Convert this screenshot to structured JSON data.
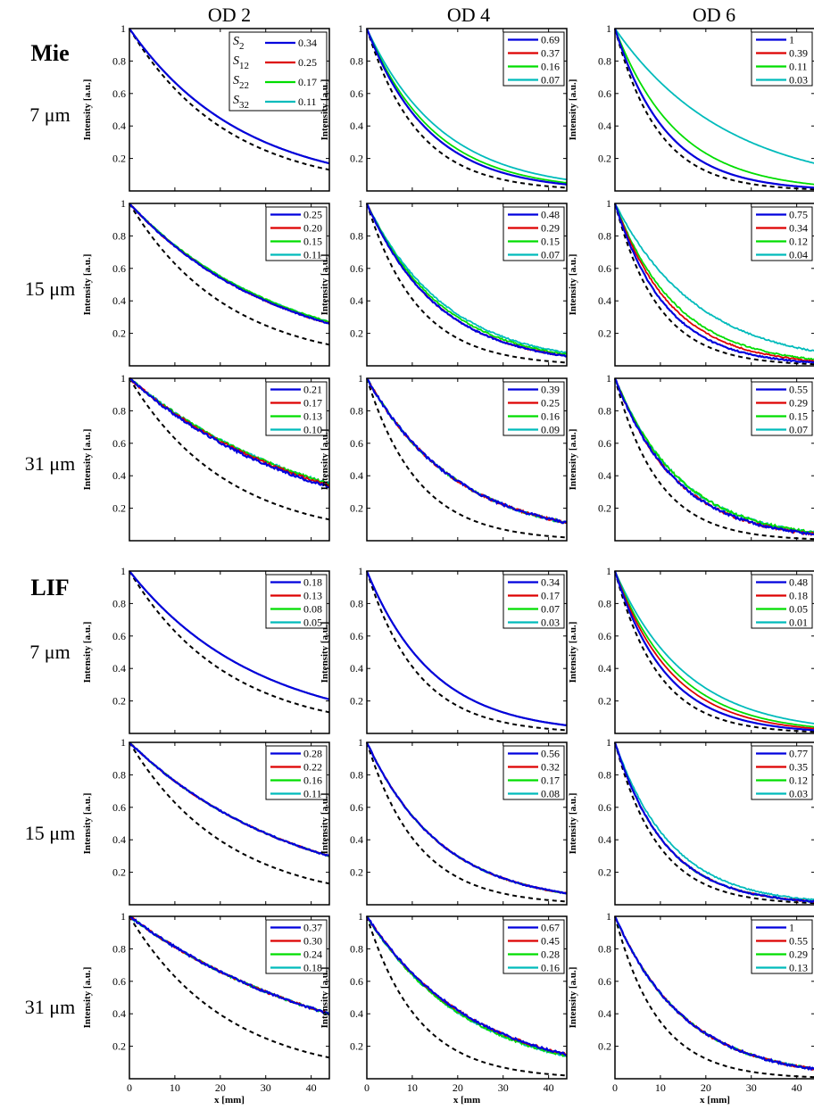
{
  "col_titles": [
    "OD 2",
    "OD 4",
    "OD 6"
  ],
  "group_labels": [
    "Mie",
    "LIF"
  ],
  "row_labels": [
    "7 μm",
    "15 μm",
    "31 μm",
    "7 μm",
    "15 μm",
    "31 μm"
  ],
  "ylabel": "Intensity [a.u.]",
  "xlabel": "x [mm]",
  "xlabel_variant": "x [mm",
  "legend_s_labels": [
    "S2",
    "S12",
    "S22",
    "S32"
  ],
  "colors": {
    "S2": "#0000dd",
    "S12": "#dd0000",
    "S22": "#00dd00",
    "S32": "#00bbbb",
    "reference": "#000000"
  },
  "chart_data": {
    "type": "line",
    "layout": "6 rows x 3 columns grid",
    "series_names": [
      "S2",
      "S12",
      "S22",
      "S32"
    ],
    "reference_line": "dashed black",
    "xlim": [
      0,
      44
    ],
    "ylim": [
      0,
      1
    ],
    "x_ticks": [
      "0",
      "10",
      "20",
      "30",
      "40"
    ],
    "y_ticks": [
      "0.2",
      "0.4",
      "0.6",
      "0.8",
      "1"
    ],
    "panels": [
      {
        "group": "Mie",
        "size": "7 μm",
        "od": "OD 2",
        "legend": [
          "0.34",
          "0.25",
          "0.17",
          "0.11"
        ],
        "end_values": [
          0.17,
          0.17,
          0.17,
          0.17
        ],
        "reference_end": 0.13
      },
      {
        "group": "Mie",
        "size": "7 μm",
        "od": "OD 4",
        "legend": [
          "0.69",
          "0.37",
          "0.16",
          "0.07"
        ],
        "end_values": [
          0.04,
          0.04,
          0.05,
          0.07
        ],
        "reference_end": 0.02
      },
      {
        "group": "Mie",
        "size": "7 μm",
        "od": "OD 6",
        "legend": [
          "1",
          "0.39",
          "0.11",
          "0.03"
        ],
        "end_values": [
          0.02,
          0.02,
          0.04,
          0.17
        ],
        "reference_end": 0.01
      },
      {
        "group": "Mie",
        "size": "15 μm",
        "od": "OD 2",
        "legend": [
          "0.25",
          "0.20",
          "0.15",
          "0.11"
        ],
        "end_values": [
          0.26,
          0.26,
          0.27,
          0.27
        ],
        "reference_end": 0.13
      },
      {
        "group": "Mie",
        "size": "15 μm",
        "od": "OD 4",
        "legend": [
          "0.48",
          "0.29",
          "0.15",
          "0.07"
        ],
        "end_values": [
          0.06,
          0.06,
          0.07,
          0.08
        ],
        "reference_end": 0.02
      },
      {
        "group": "Mie",
        "size": "15 μm",
        "od": "OD 6",
        "legend": [
          "0.75",
          "0.34",
          "0.12",
          "0.04"
        ],
        "end_values": [
          0.02,
          0.03,
          0.04,
          0.09
        ],
        "reference_end": 0.01
      },
      {
        "group": "Mie",
        "size": "31 μm",
        "od": "OD 2",
        "legend": [
          "0.21",
          "0.17",
          "0.13",
          "0.10"
        ],
        "end_values": [
          0.33,
          0.34,
          0.35,
          0.35
        ],
        "reference_end": 0.13
      },
      {
        "group": "Mie",
        "size": "31 μm",
        "od": "OD 4",
        "legend": [
          "0.39",
          "0.25",
          "0.16",
          "0.09"
        ],
        "end_values": [
          0.11,
          0.11,
          0.11,
          0.11
        ],
        "reference_end": 0.02
      },
      {
        "group": "Mie",
        "size": "31 μm",
        "od": "OD 6",
        "legend": [
          "0.55",
          "0.29",
          "0.15",
          "0.07"
        ],
        "end_values": [
          0.04,
          0.04,
          0.05,
          0.05
        ],
        "reference_end": 0.01
      },
      {
        "group": "LIF",
        "size": "7 μm",
        "od": "OD 2",
        "legend": [
          "0.18",
          "0.13",
          "0.08",
          "0.05"
        ],
        "end_values": [
          0.21,
          0.21,
          0.21,
          0.21
        ],
        "reference_end": 0.13
      },
      {
        "group": "LIF",
        "size": "7 μm",
        "od": "OD 4",
        "legend": [
          "0.34",
          "0.17",
          "0.07",
          "0.03"
        ],
        "end_values": [
          0.05,
          0.05,
          0.05,
          0.05
        ],
        "reference_end": 0.02
      },
      {
        "group": "LIF",
        "size": "7 μm",
        "od": "OD 6",
        "legend": [
          "0.48",
          "0.18",
          "0.05",
          "0.01"
        ],
        "end_values": [
          0.02,
          0.03,
          0.04,
          0.06
        ],
        "reference_end": 0.01
      },
      {
        "group": "LIF",
        "size": "15 μm",
        "od": "OD 2",
        "legend": [
          "0.28",
          "0.22",
          "0.16",
          "0.11"
        ],
        "end_values": [
          0.3,
          0.3,
          0.3,
          0.3
        ],
        "reference_end": 0.13
      },
      {
        "group": "LIF",
        "size": "15 μm",
        "od": "OD 4",
        "legend": [
          "0.56",
          "0.32",
          "0.17",
          "0.08"
        ],
        "end_values": [
          0.07,
          0.07,
          0.07,
          0.07
        ],
        "reference_end": 0.02
      },
      {
        "group": "LIF",
        "size": "15 μm",
        "od": "OD 6",
        "legend": [
          "0.77",
          "0.35",
          "0.12",
          "0.03"
        ],
        "end_values": [
          0.02,
          0.02,
          0.02,
          0.03
        ],
        "reference_end": 0.01
      },
      {
        "group": "LIF",
        "size": "31 μm",
        "od": "OD 2",
        "legend": [
          "0.37",
          "0.30",
          "0.24",
          "0.18"
        ],
        "end_values": [
          0.4,
          0.4,
          0.4,
          0.4
        ],
        "reference_end": 0.13
      },
      {
        "group": "LIF",
        "size": "31 μm",
        "od": "OD 4",
        "legend": [
          "0.67",
          "0.45",
          "0.28",
          "0.16"
        ],
        "end_values": [
          0.15,
          0.15,
          0.14,
          0.14
        ],
        "reference_end": 0.02
      },
      {
        "group": "LIF",
        "size": "31 μm",
        "od": "OD 6",
        "legend": [
          "1",
          "0.55",
          "0.29",
          "0.13"
        ],
        "end_values": [
          0.06,
          0.06,
          0.06,
          0.06
        ],
        "reference_end": 0.01
      }
    ]
  }
}
